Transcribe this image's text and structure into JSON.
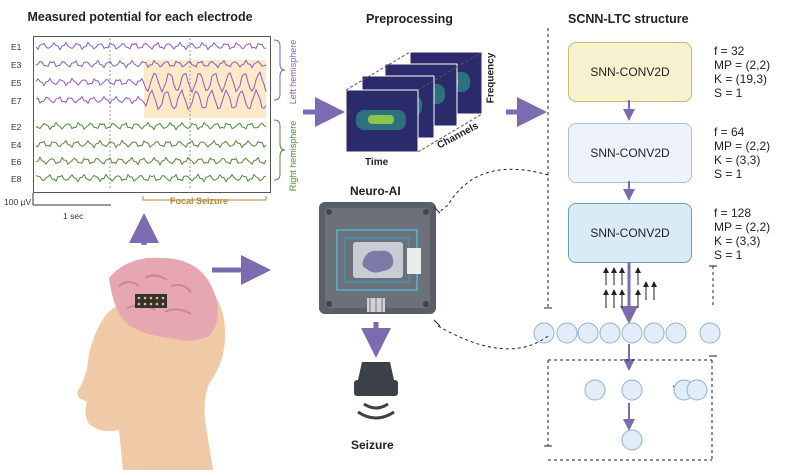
{
  "eeg": {
    "title": "Measured potential for each electrode",
    "electrodes": [
      "E1",
      "E3",
      "E5",
      "E7",
      "E2",
      "E4",
      "E6",
      "E8"
    ],
    "left_hemisphere": "Left hemisphere",
    "right_hemisphere": "Right hemisphere",
    "scale_uv": "100 µV",
    "scale_sec": "1 sec",
    "focal_seizure": "Focal Seizure",
    "colors": {
      "left": "#8a5cc2",
      "right": "#4f8a3a",
      "seizure_bg": "#fbe9c8"
    }
  },
  "preprocessing": {
    "title": "Preprocessing",
    "axis_time": "Time",
    "axis_channels": "Channels",
    "axis_frequency": "Frequency"
  },
  "neuro_ai": {
    "label": "Neuro-AI"
  },
  "output": {
    "label": "Seizure"
  },
  "scnn": {
    "title": "SCNN-LTC structure",
    "layers": [
      {
        "label": "SNN-CONV2D",
        "params": [
          "f = 32",
          "MP = (2,2)",
          "K = (19,3)",
          "S = 1"
        ]
      },
      {
        "label": "SNN-CONV2D",
        "params": [
          "f = 64",
          "MP = (2,2)",
          "K = (3,3)",
          "S = 1"
        ]
      },
      {
        "label": "SNN-CONV2D",
        "params": [
          "f = 128",
          "MP = (2,2)",
          "K = (3,3)",
          "S = 1"
        ]
      }
    ],
    "hidden_ellipsis": "...",
    "colors": {
      "layer1": "#f7f1cf",
      "layer2": "#eef3fb",
      "layer3": "#d9ecf6",
      "arrow": "#7b6bb0"
    }
  }
}
